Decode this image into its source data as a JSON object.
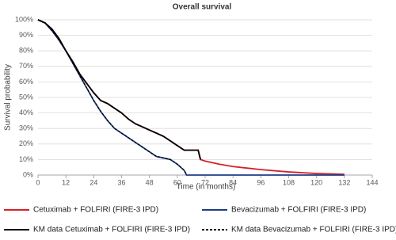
{
  "chart_data": {
    "type": "line",
    "title": "Overall survival",
    "x_label": "Time (in months)",
    "y_label": "Survival probability",
    "xlim": [
      0,
      144
    ],
    "xticks": [
      0,
      12,
      24,
      36,
      48,
      60,
      72,
      84,
      96,
      108,
      120,
      132,
      144
    ],
    "ylim": [
      0,
      100
    ],
    "yticks": [
      {
        "value": 0,
        "label": "0%"
      },
      {
        "value": 10,
        "label": "10%"
      },
      {
        "value": 20,
        "label": "20%"
      },
      {
        "value": 30,
        "label": "30%"
      },
      {
        "value": 40,
        "label": "40%"
      },
      {
        "value": 50,
        "label": "50%"
      },
      {
        "value": 60,
        "label": "60%"
      },
      {
        "value": 70,
        "label": "70%"
      },
      {
        "value": 80,
        "label": "80%"
      },
      {
        "value": 90,
        "label": "90%"
      },
      {
        "value": 100,
        "label": "100%"
      }
    ],
    "grid": true,
    "legend": "bottom",
    "series": [
      {
        "name": "Cetuximab + FOLFIRI (FIRE-3 IPD)",
        "color": "#d62027",
        "dash": false,
        "x": [
          0,
          3,
          6,
          9,
          12,
          15,
          18,
          21,
          24,
          27,
          30,
          33,
          36,
          39,
          42,
          45,
          48,
          51,
          54,
          57,
          60,
          63,
          66,
          69,
          70,
          72,
          78,
          84,
          90,
          96,
          108,
          120,
          132
        ],
        "values": [
          100,
          98,
          94,
          88,
          80,
          73,
          65,
          59,
          53,
          48,
          46,
          43,
          40,
          36,
          33,
          31,
          29,
          27,
          25,
          22,
          19,
          16,
          16,
          16,
          10,
          9,
          7,
          5.5,
          4.5,
          3.5,
          2,
          1,
          0.5
        ]
      },
      {
        "name": "Bevacizumab + FOLFIRI (FIRE-3 IPD)",
        "color": "#1f3c88",
        "dash": false,
        "x": [
          0,
          3,
          6,
          9,
          12,
          15,
          18,
          21,
          24,
          27,
          30,
          33,
          36,
          39,
          42,
          45,
          48,
          51,
          54,
          57,
          60,
          63,
          64,
          132
        ],
        "values": [
          100,
          98,
          93,
          87,
          80,
          72,
          64,
          56,
          48,
          41,
          35,
          30,
          27,
          24,
          21,
          18,
          15,
          12,
          11,
          10,
          7,
          3,
          0,
          0
        ]
      },
      {
        "name": "KM data Cetuximab + FOLFIRI (FIRE-3 IPD)",
        "color": "#000000",
        "dash": false,
        "x": [
          0,
          3,
          6,
          9,
          12,
          15,
          18,
          21,
          24,
          27,
          30,
          33,
          36,
          39,
          42,
          45,
          48,
          51,
          54,
          57,
          60,
          63,
          66,
          69,
          70
        ],
        "values": [
          100,
          98,
          94,
          88,
          80,
          73,
          65,
          59,
          53,
          48,
          46,
          43,
          40,
          36,
          33,
          31,
          29,
          27,
          25,
          22,
          19,
          16,
          16,
          16,
          10
        ]
      },
      {
        "name": "KM data Bevacizumab + FOLFIRI (FIRE-3 IPD)",
        "color": "#000000",
        "dash": true,
        "x": [
          0,
          3,
          6,
          9,
          12,
          15,
          18,
          21,
          24,
          27,
          30,
          33,
          36,
          39,
          42,
          45,
          48,
          51,
          54,
          57,
          60,
          63,
          64
        ],
        "values": [
          100,
          98,
          93,
          87,
          80,
          72,
          64,
          56,
          48,
          41,
          35,
          30,
          27,
          24,
          21,
          18,
          15,
          12,
          11,
          10,
          7,
          3,
          0
        ]
      }
    ]
  }
}
